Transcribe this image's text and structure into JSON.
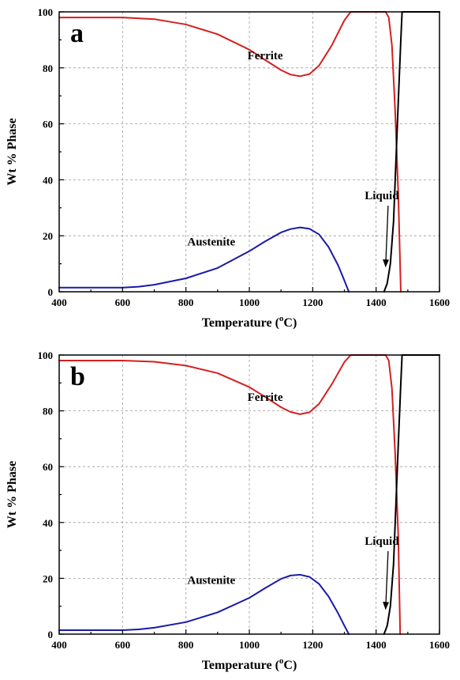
{
  "chart_data": [
    {
      "type": "line",
      "panel_label": "a",
      "xlabel": "Temperature (°C)",
      "xlabel_main": "Temperature (",
      "xlabel_sup": "o",
      "xlabel_end": "C)",
      "ylabel": "Wt % Phase",
      "xlim": [
        400,
        1600
      ],
      "ylim": [
        0,
        100
      ],
      "xticks": [
        400,
        600,
        800,
        1000,
        1200,
        1400,
        1600
      ],
      "yticks": [
        0,
        20,
        40,
        60,
        80,
        100
      ],
      "grid": true,
      "series": [
        {
          "name": "Ferrite",
          "color": "#d42020",
          "x": [
            400,
            600,
            700,
            800,
            900,
            1000,
            1050,
            1100,
            1130,
            1160,
            1190,
            1220,
            1260,
            1300,
            1320,
            1430,
            1440,
            1450,
            1460,
            1470,
            1478
          ],
          "y": [
            98.0,
            98.0,
            97.4,
            95.5,
            92.0,
            86.5,
            82.8,
            79.2,
            77.6,
            77.0,
            77.8,
            80.8,
            88.0,
            97.0,
            100,
            100,
            98.0,
            88.0,
            65.0,
            35.0,
            0
          ]
        },
        {
          "name": "Austenite",
          "color": "#1a1aaa",
          "x": [
            400,
            600,
            650,
            700,
            800,
            900,
            1000,
            1050,
            1100,
            1130,
            1160,
            1190,
            1220,
            1250,
            1280,
            1300,
            1314
          ],
          "y": [
            1.5,
            1.5,
            1.8,
            2.5,
            4.8,
            8.5,
            14.5,
            18.0,
            21.2,
            22.4,
            23.0,
            22.5,
            20.5,
            16.0,
            9.5,
            4.0,
            0
          ]
        },
        {
          "name": "Liquid",
          "color": "#000000",
          "x": [
            1425,
            1435,
            1445,
            1455,
            1462,
            1470,
            1478,
            1482,
            1600
          ],
          "y": [
            0,
            3,
            10,
            25,
            45,
            68,
            90,
            100,
            100
          ]
        }
      ],
      "annotations": [
        {
          "text": "Ferrite",
          "x": 1050,
          "y": 83
        },
        {
          "text": "Austenite",
          "x": 880,
          "y": 16.5
        },
        {
          "text": "Liquid",
          "x": 1418,
          "y": 33,
          "arrow_to": [
            1430,
            9
          ]
        }
      ]
    },
    {
      "type": "line",
      "panel_label": "b",
      "xlabel": "Temperature (°C)",
      "xlabel_main": "Temperature (",
      "xlabel_sup": "o",
      "xlabel_end": "C)",
      "ylabel": "Wt % Phase",
      "xlim": [
        400,
        1600
      ],
      "ylim": [
        0,
        100
      ],
      "xticks": [
        400,
        600,
        800,
        1000,
        1200,
        1400,
        1600
      ],
      "yticks": [
        0,
        20,
        40,
        60,
        80,
        100
      ],
      "grid": true,
      "series": [
        {
          "name": "Ferrite",
          "color": "#d42020",
          "x": [
            400,
            600,
            700,
            800,
            900,
            1000,
            1050,
            1100,
            1130,
            1160,
            1190,
            1220,
            1260,
            1300,
            1320,
            1430,
            1440,
            1450,
            1460,
            1470,
            1476
          ],
          "y": [
            98.0,
            98.0,
            97.6,
            96.2,
            93.5,
            88.5,
            85.0,
            81.3,
            79.6,
            78.8,
            79.5,
            82.5,
            89.5,
            97.5,
            100,
            100,
            98.0,
            88.0,
            65.0,
            35.0,
            0
          ]
        },
        {
          "name": "Austenite",
          "color": "#1a1aaa",
          "x": [
            400,
            600,
            650,
            700,
            800,
            900,
            1000,
            1050,
            1100,
            1130,
            1160,
            1190,
            1220,
            1250,
            1280,
            1300,
            1314
          ],
          "y": [
            1.4,
            1.4,
            1.7,
            2.3,
            4.3,
            7.8,
            13.0,
            16.5,
            19.8,
            21.0,
            21.3,
            20.5,
            18.0,
            13.5,
            7.5,
            3.0,
            0
          ]
        },
        {
          "name": "Liquid",
          "color": "#000000",
          "x": [
            1425,
            1435,
            1445,
            1455,
            1462,
            1470,
            1478,
            1482,
            1600
          ],
          "y": [
            0,
            3,
            10,
            25,
            45,
            68,
            90,
            100,
            100
          ]
        }
      ],
      "annotations": [
        {
          "text": "Ferrite",
          "x": 1050,
          "y": 83.5
        },
        {
          "text": "Austenite",
          "x": 880,
          "y": 18
        },
        {
          "text": "Liquid",
          "x": 1418,
          "y": 32,
          "arrow_to": [
            1430,
            9
          ]
        }
      ]
    }
  ]
}
